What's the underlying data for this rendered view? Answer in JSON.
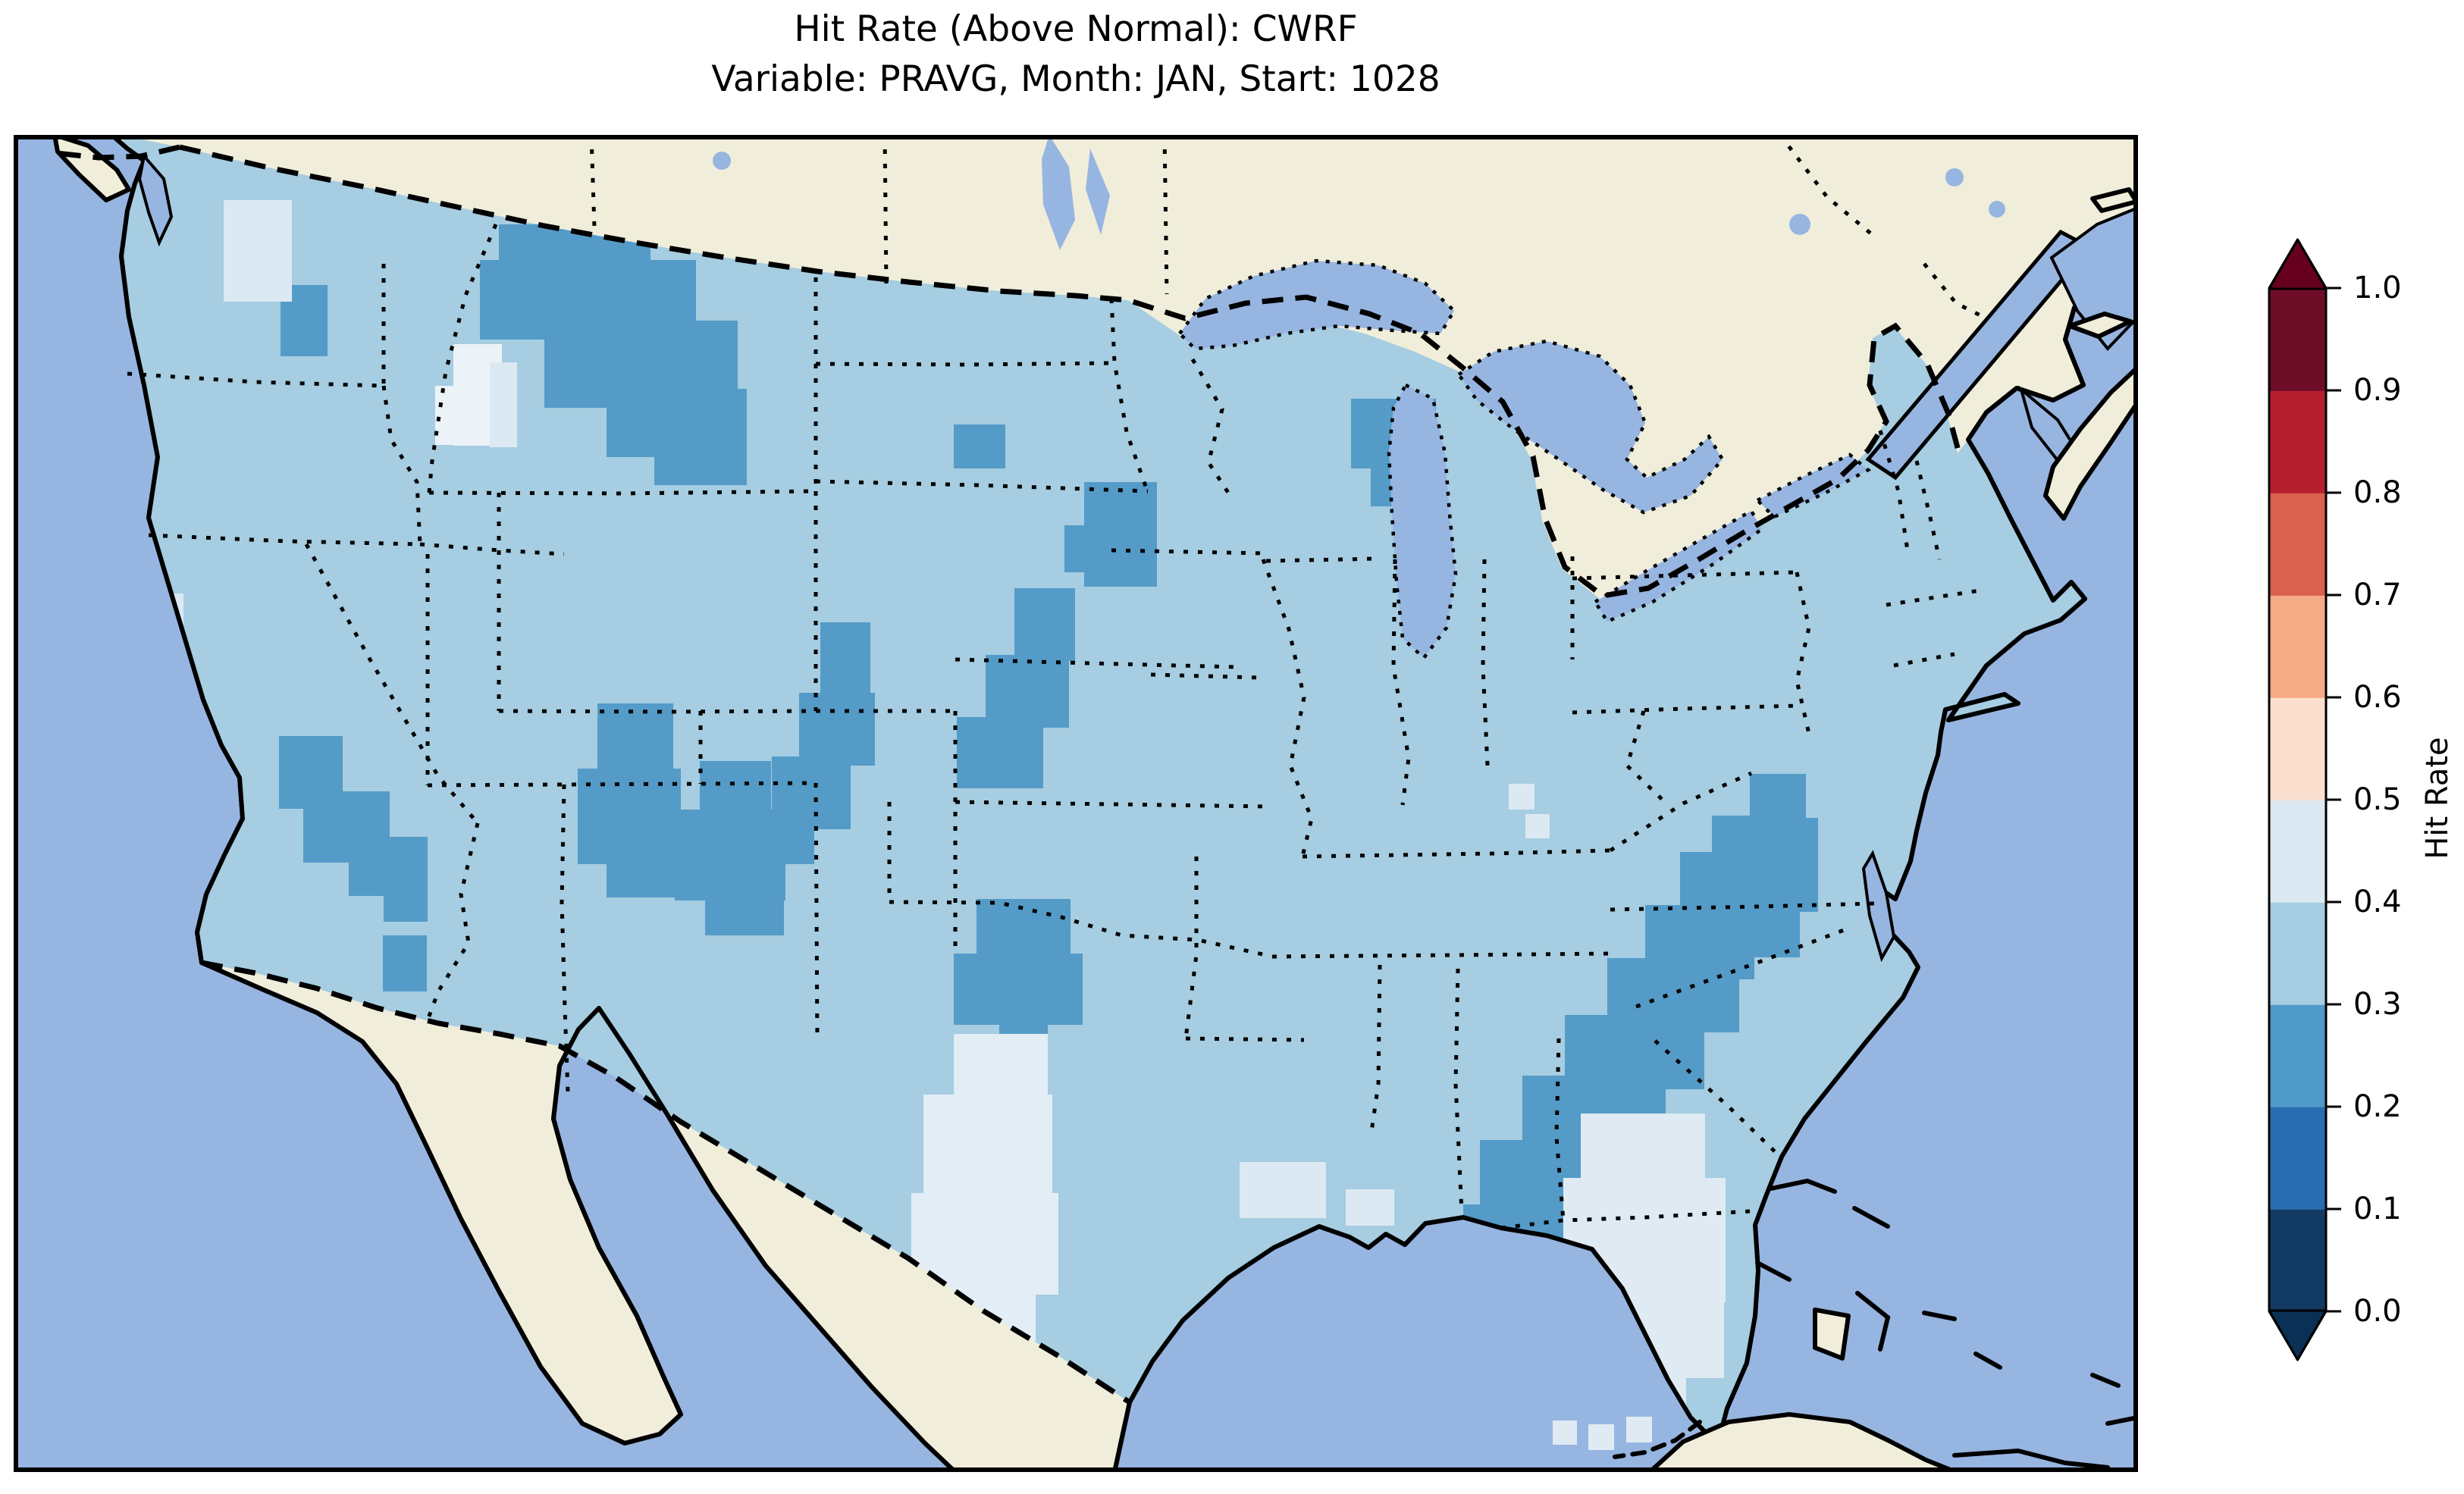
{
  "figure": {
    "title_line1": "Hit Rate (Above Normal): CWRF",
    "title_line2": "Variable: PRAVG, Month: JAN, Start: 1028"
  },
  "colorbar": {
    "label": "Hit Rate",
    "orientation": "vertical-right",
    "extend": "both",
    "ticks": [
      "1.0",
      "0.9",
      "0.8",
      "0.7",
      "0.6",
      "0.5",
      "0.4",
      "0.3",
      "0.2",
      "0.1",
      "0.0"
    ],
    "extend_over_color": "#67001f",
    "extend_under_color": "#0b3055",
    "segments": [
      {
        "range": "0.0-0.1",
        "color": "#123a63"
      },
      {
        "range": "0.1-0.2",
        "color": "#2a6cb2"
      },
      {
        "range": "0.2-0.3",
        "color": "#4f9ac8"
      },
      {
        "range": "0.3-0.4",
        "color": "#a6cde1"
      },
      {
        "range": "0.4-0.5",
        "color": "#dce9f3"
      },
      {
        "range": "0.5-0.6",
        "color": "#fbe0cf"
      },
      {
        "range": "0.6-0.7",
        "color": "#f5ab85"
      },
      {
        "range": "0.7-0.8",
        "color": "#d9614d"
      },
      {
        "range": "0.8-0.9",
        "color": "#b51f2f"
      },
      {
        "range": "0.9-1.0",
        "color": "#6d0c26"
      }
    ]
  },
  "map": {
    "projection": "Lambert conformal (CONUS view)",
    "colors": {
      "ocean": "#97b5e1",
      "land": "#f0eedb",
      "data_fill": "#a6cde1",
      "coastline": "#000000",
      "border": "#000000",
      "frame": "#000000"
    },
    "patches": [
      {
        "name": "montana-north-dakota-low",
        "bin": "0.2-0.3",
        "color": "#549bc8",
        "rects": [
          [
            760,
            95,
            95,
            38
          ],
          [
            640,
            118,
            200,
            70
          ],
          [
            615,
            165,
            285,
            105
          ],
          [
            700,
            245,
            255,
            115
          ],
          [
            782,
            335,
            185,
            90
          ],
          [
            845,
            400,
            122,
            62
          ]
        ]
      },
      {
        "name": "se-washington-low",
        "bin": "0.2-0.3",
        "color": "#549bc8",
        "rects": [
          [
            352,
            198,
            62,
            94
          ]
        ]
      },
      {
        "name": "central-minnesota-low",
        "bin": "0.2-0.3",
        "color": "#549bc8",
        "rects": [
          [
            1412,
            458,
            96,
            138
          ],
          [
            1386,
            515,
            30,
            62
          ]
        ]
      },
      {
        "name": "north-lake-michigan-low",
        "bin": "0.2-0.3",
        "color": "#549bc8",
        "rects": [
          [
            1764,
            348,
            112,
            92
          ],
          [
            1790,
            430,
            82,
            60
          ]
        ]
      },
      {
        "name": "wyoming-nebraska-nub-low",
        "bin": "0.2-0.3",
        "color": "#549bc8",
        "rects": [
          [
            1240,
            382,
            68,
            58
          ]
        ]
      },
      {
        "name": "nebraska-panhandle-low",
        "bin": "0.2-0.3",
        "color": "#549bc8",
        "rects": [
          [
            1320,
            598,
            80,
            96
          ],
          [
            1282,
            686,
            110,
            96
          ],
          [
            1244,
            768,
            114,
            94
          ]
        ]
      },
      {
        "name": "west-colorado-low",
        "bin": "0.2-0.3",
        "color": "#549bc8",
        "rects": [
          [
            770,
            750,
            100,
            96
          ],
          [
            744,
            836,
            136,
            126
          ],
          [
            782,
            946,
            100,
            60
          ]
        ]
      },
      {
        "name": "central-colorado-low",
        "bin": "0.2-0.3",
        "color": "#549bc8",
        "rects": [
          [
            905,
            826,
            94,
            72
          ],
          [
            872,
            890,
            146,
            120
          ],
          [
            912,
            996,
            104,
            60
          ]
        ]
      },
      {
        "name": "east-colorado-low",
        "bin": "0.2-0.3",
        "color": "#549bc8",
        "rects": [
          [
            1064,
            643,
            66,
            96
          ],
          [
            1036,
            736,
            100,
            96
          ],
          [
            1000,
            820,
            104,
            96
          ],
          [
            972,
            904,
            84,
            58
          ]
        ]
      },
      {
        "name": "kansas-oklahoma-low",
        "bin": "0.2-0.3",
        "color": "#549bc8",
        "rects": [
          [
            1270,
            1008,
            124,
            82
          ],
          [
            1240,
            1080,
            170,
            94
          ],
          [
            1300,
            1160,
            64,
            44
          ],
          [
            1312,
            1226,
            40,
            78
          ]
        ]
      },
      {
        "name": "utah-low",
        "bin": "0.2-0.3",
        "color": "#549bc8",
        "rects": [
          [
            350,
            793,
            84,
            96
          ],
          [
            382,
            866,
            114,
            94
          ],
          [
            442,
            926,
            104,
            78
          ],
          [
            488,
            980,
            58,
            58
          ]
        ]
      },
      {
        "name": "arizona-low",
        "bin": "0.2-0.3",
        "color": "#549bc8",
        "rects": [
          [
            487,
            1056,
            58,
            74
          ],
          [
            447,
            1240,
            38,
            38
          ],
          [
            480,
            1210,
            36,
            36
          ]
        ]
      },
      {
        "name": "california-dot-low",
        "bin": "0.2-0.3",
        "color": "#549bc8",
        "rects": [
          [
            130,
            960,
            34,
            34
          ]
        ]
      },
      {
        "name": "southeast-band-low",
        "bin": "0.2-0.3",
        "color": "#549bc8",
        "rects": [
          [
            2240,
            898,
            80,
            80
          ],
          [
            2198,
            946,
            114,
            94
          ],
          [
            2152,
            1016,
            144,
            98
          ],
          [
            2102,
            1086,
            174,
            98
          ],
          [
            2046,
            1161,
            184,
            98
          ],
          [
            1990,
            1241,
            189,
            98
          ],
          [
            1934,
            1326,
            194,
            98
          ],
          [
            1912,
            1411,
            164,
            84
          ],
          [
            1957,
            1476,
            94,
            48
          ]
        ]
      },
      {
        "name": "carolina-coast-low",
        "bin": "0.2-0.3",
        "color": "#549bc8",
        "rects": [
          [
            2290,
            843,
            74,
            64
          ],
          [
            2312,
            901,
            68,
            124
          ],
          [
            2282,
            1011,
            74,
            74
          ]
        ]
      },
      {
        "name": "puget-sound-high",
        "bin": "0.4-0.5",
        "color": "#dce9f3",
        "rects": [
          [
            277,
            86,
            90,
            134
          ]
        ]
      },
      {
        "name": "nw-wyoming-high",
        "bin": "0.4-0.5",
        "color": "#ecf3f8",
        "rects": [
          [
            580,
            276,
            64,
            134
          ],
          [
            556,
            331,
            38,
            78
          ]
        ]
      },
      {
        "name": "idaho-strip-high",
        "bin": "0.4-0.5",
        "color": "#dce9f3",
        "rects": [
          [
            628,
            300,
            36,
            112
          ]
        ]
      },
      {
        "name": "oregon-coast-high",
        "bin": "0.4-0.5",
        "color": "#dce9f3",
        "rects": [
          [
            132,
            605,
            92,
            82
          ]
        ]
      },
      {
        "name": "texas-high",
        "bin": "0.4-0.5",
        "color": "#e2edf6",
        "rects": [
          [
            1240,
            1186,
            124,
            98
          ],
          [
            1200,
            1266,
            170,
            144
          ],
          [
            1184,
            1396,
            194,
            134
          ],
          [
            1228,
            1516,
            120,
            94
          ],
          [
            1268,
            1596,
            80,
            54
          ]
        ]
      },
      {
        "name": "louisiana-coast-high",
        "bin": "0.4-0.5",
        "color": "#dce9f3",
        "rects": [
          [
            1617,
            1355,
            114,
            74
          ],
          [
            1757,
            1391,
            64,
            48
          ]
        ]
      },
      {
        "name": "florida-high",
        "bin": "0.4-0.5",
        "color": "#dfeaf3",
        "rects": [
          [
            2067,
            1291,
            164,
            98
          ],
          [
            2044,
            1376,
            214,
            164
          ],
          [
            2072,
            1526,
            184,
            114
          ],
          [
            2112,
            1631,
            94,
            48
          ]
        ]
      },
      {
        "name": "florida-keys-specks-high",
        "bin": "0.4-0.5",
        "color": "#dfeaf3",
        "clip": false,
        "rects": [
          [
            2030,
            1696,
            32,
            32
          ],
          [
            2077,
            1701,
            34,
            34
          ],
          [
            2127,
            1691,
            34,
            34
          ]
        ]
      },
      {
        "name": "ohio-specks-high",
        "bin": "0.4-0.5",
        "color": "#dce9f3",
        "rects": [
          [
            1972,
            856,
            34,
            34
          ],
          [
            1994,
            896,
            32,
            32
          ]
        ]
      }
    ]
  },
  "chart_data": {
    "type": "heatmap",
    "title": "Hit Rate (Above Normal): CWRF",
    "subtitle": "Variable: PRAVG, Month: JAN, Start: 1028",
    "model": "CWRF",
    "variable": "PRAVG",
    "month": "JAN",
    "start": "1028",
    "region": "Contiguous United States (gridded field on a Lambert-conformal map)",
    "colorbar_label": "Hit Rate",
    "value_range": [
      0.0,
      1.0
    ],
    "bin_edges": [
      0.0,
      0.1,
      0.2,
      0.3,
      0.4,
      0.5,
      0.6,
      0.7,
      0.8,
      0.9,
      1.0
    ],
    "bin_colors": [
      "#123a63",
      "#2a6cb2",
      "#4f9ac8",
      "#a6cde1",
      "#dce9f3",
      "#fbe0cf",
      "#f5ab85",
      "#d9614d",
      "#b51f2f",
      "#6d0c26"
    ],
    "legend_position": "right",
    "dominant_value_bin": "0.3-0.4",
    "low_value_regions_0.2_0.3": [
      "Montana / western North Dakota",
      "southeastern Washington",
      "central Minnesota",
      "northern Lake Michigan shore",
      "Nebraska panhandle",
      "western & central Colorado Rockies",
      "eastern Colorado",
      "Utah-Nevada border",
      "central Arizona",
      "Kansas-Oklahoma border",
      "Georgia / South Carolina diagonal band",
      "North Carolina coast"
    ],
    "high_value_regions_0.4_0.5": [
      "Puget Sound area",
      "northwestern Wyoming",
      "coastal Oregon patch",
      "central and southern Texas",
      "Louisiana coast",
      "Florida peninsula",
      "scattered Ohio-valley cells"
    ]
  }
}
